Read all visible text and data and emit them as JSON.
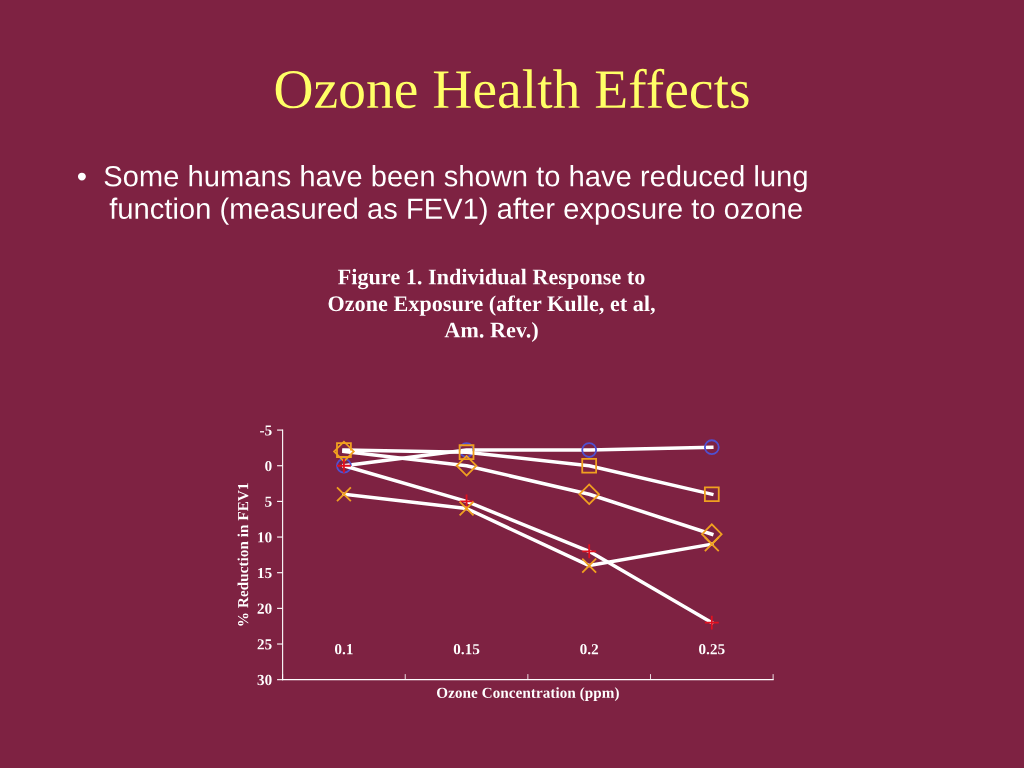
{
  "chart_data": {
    "type": "line",
    "title": "Ozone Health Effects",
    "subtitle": "•  Some humans have been shown to have reduced lung\n    function (measured as FEV1) after exposure to ozone",
    "annotations": [
      "Figure 1. Individual Response to\nOzone Exposure (after Kulle, et al,\nAm. Rev.)"
    ],
    "xlabel": "Ozone Concentration (ppm)",
    "ylabel": "% Reduction in FEV1",
    "categories": [
      "0.1",
      "0.15",
      "0.2",
      "0.25"
    ],
    "ylim": [
      30,
      -5
    ],
    "yticks": [
      -5,
      0,
      5,
      10,
      15,
      20,
      25,
      30
    ],
    "grid": false,
    "legend": false,
    "series": [
      {
        "color": "#5050d0",
        "marker": "circle",
        "values": [
          0,
          -2.2,
          -2.2,
          -2.6
        ]
      },
      {
        "color": "#f0a020",
        "marker": "square",
        "values": [
          -2.2,
          -1.9,
          0,
          4
        ]
      },
      {
        "color": "#f0a020",
        "marker": "diamond",
        "values": [
          -2,
          0,
          4,
          9.6
        ]
      },
      {
        "color": "#e01020",
        "marker": "cross",
        "values": [
          0,
          5,
          12,
          22
        ]
      },
      {
        "color": "#f0a020",
        "marker": "x",
        "values": [
          4,
          6,
          14,
          11
        ]
      }
    ]
  }
}
